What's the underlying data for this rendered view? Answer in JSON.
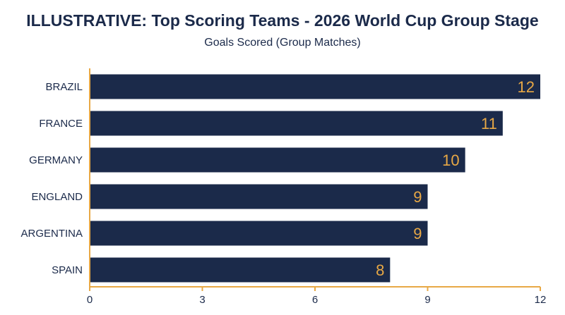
{
  "chart_data": {
    "type": "bar",
    "orientation": "horizontal",
    "title": "ILLUSTRATIVE: Top Scoring Teams - 2026 World Cup Group Stage",
    "subtitle": "Goals Scored (Group Matches)",
    "categories": [
      "BRAZIL",
      "FRANCE",
      "GERMANY",
      "ENGLAND",
      "ARGENTINA",
      "SPAIN"
    ],
    "values": [
      12,
      11,
      10,
      9,
      9,
      8
    ],
    "xlim": [
      0,
      12
    ],
    "xticks": [
      0,
      3,
      6,
      9,
      12
    ],
    "grid": false,
    "legend": "none",
    "colors": {
      "bar": "#1b2a4a",
      "value_label": "#e8a845",
      "axis": "#e8a845",
      "text": "#1b2a4a"
    }
  }
}
